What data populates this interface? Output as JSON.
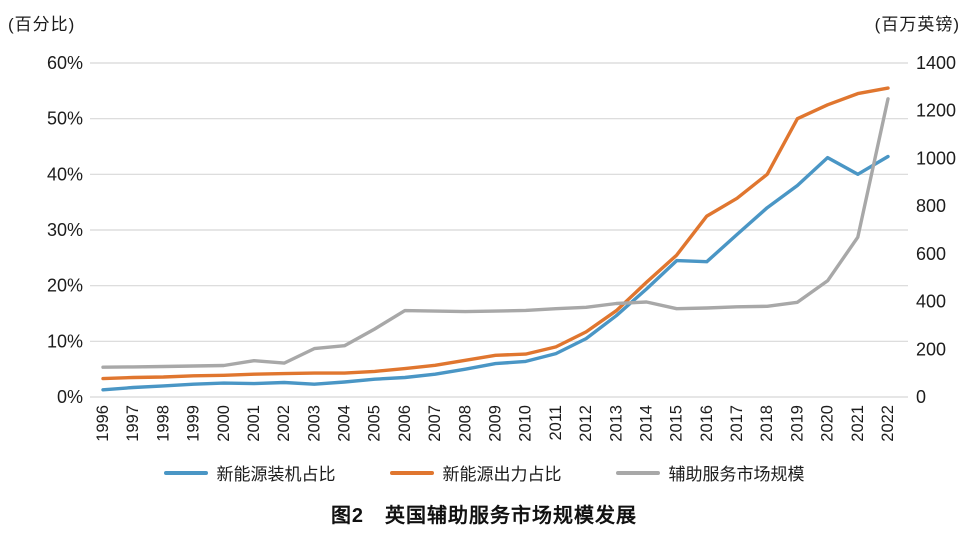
{
  "caption": "图2　英国辅助服务市场规模发展",
  "chart_data": {
    "type": "line",
    "x": [
      1996,
      1997,
      1998,
      1999,
      2000,
      2001,
      2002,
      2003,
      2004,
      2005,
      2006,
      2007,
      2008,
      2009,
      2010,
      2011,
      2012,
      2013,
      2014,
      2015,
      2016,
      2017,
      2018,
      2019,
      2020,
      2021,
      2022
    ],
    "left_axis": {
      "unit": "(百分比)",
      "ticks": [
        "0%",
        "10%",
        "20%",
        "30%",
        "40%",
        "50%",
        "60%"
      ],
      "min": 0,
      "max": 60
    },
    "right_axis": {
      "unit": "(百万英镑)",
      "ticks": [
        "0",
        "200",
        "400",
        "600",
        "800",
        "1000",
        "1200",
        "1400"
      ],
      "min": 0,
      "max": 1400
    },
    "grid": true,
    "legend_position": "bottom",
    "colors": {
      "grid": "#d8d8d8",
      "text": "#1c1c1c"
    },
    "series": [
      {
        "name": "新能源装机占比",
        "axis": "left",
        "color": "#4a96c5",
        "values": [
          1.3,
          1.7,
          2.0,
          2.3,
          2.5,
          2.4,
          2.6,
          2.3,
          2.7,
          3.2,
          3.5,
          4.1,
          5.0,
          6.0,
          6.4,
          7.8,
          10.5,
          14.6,
          19.4,
          24.5,
          24.3,
          29.2,
          34.0,
          38.0,
          43.0,
          40.0,
          43.2
        ]
      },
      {
        "name": "新能源出力占比",
        "axis": "left",
        "color": "#e0762f",
        "values": [
          3.3,
          3.5,
          3.6,
          3.8,
          3.9,
          4.1,
          4.2,
          4.3,
          4.3,
          4.6,
          5.1,
          5.7,
          6.6,
          7.5,
          7.7,
          9.0,
          11.7,
          15.5,
          20.6,
          25.5,
          32.5,
          35.7,
          40.0,
          50.0,
          52.5,
          54.5,
          55.5
        ]
      },
      {
        "name": "辅助服务市场规模",
        "axis": "right",
        "color": "#a8a8a8",
        "values": [
          125,
          126,
          128,
          130,
          132,
          152,
          142,
          203,
          215,
          285,
          362,
          360,
          358,
          360,
          363,
          370,
          376,
          392,
          398,
          370,
          373,
          378,
          380,
          397,
          487,
          670,
          1250
        ]
      }
    ]
  }
}
